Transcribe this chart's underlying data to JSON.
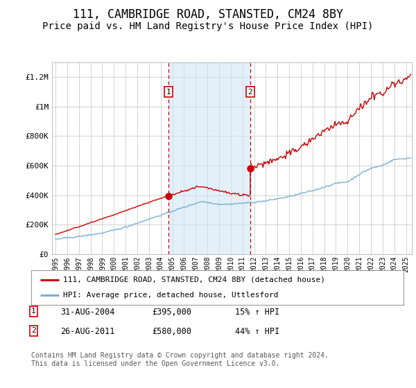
{
  "title": "111, CAMBRIDGE ROAD, STANSTED, CM24 8BY",
  "subtitle": "Price paid vs. HM Land Registry's House Price Index (HPI)",
  "title_fontsize": 12,
  "subtitle_fontsize": 10,
  "ylabel_ticks": [
    "£0",
    "£200K",
    "£400K",
    "£600K",
    "£800K",
    "£1M",
    "£1.2M"
  ],
  "ytick_values": [
    0,
    200000,
    400000,
    600000,
    800000,
    1000000,
    1200000
  ],
  "ylim": [
    0,
    1300000
  ],
  "xlim_start": 1994.7,
  "xlim_end": 2025.5,
  "sale1_year": 2004.667,
  "sale1_price": 395000,
  "sale2_year": 2011.667,
  "sale2_price": 580000,
  "shade_color": "#cce5f5",
  "shade_alpha": 0.55,
  "red_line_color": "#cc0000",
  "blue_line_color": "#7ab0d4",
  "marker_box_color": "#cc0000",
  "legend_label_red": "111, CAMBRIDGE ROAD, STANSTED, CM24 8BY (detached house)",
  "legend_label_blue": "HPI: Average price, detached house, Uttlesford",
  "annotation1_label": "1",
  "annotation1_date": "31-AUG-2004",
  "annotation1_price": "£395,000",
  "annotation1_hpi": "15% ↑ HPI",
  "annotation2_label": "2",
  "annotation2_date": "26-AUG-2011",
  "annotation2_price": "£580,000",
  "annotation2_hpi": "44% ↑ HPI",
  "footnote": "Contains HM Land Registry data © Crown copyright and database right 2024.\nThis data is licensed under the Open Government Licence v3.0.",
  "bg_color": "#ffffff",
  "plot_bg_color": "#ffffff",
  "grid_color": "#cccccc"
}
